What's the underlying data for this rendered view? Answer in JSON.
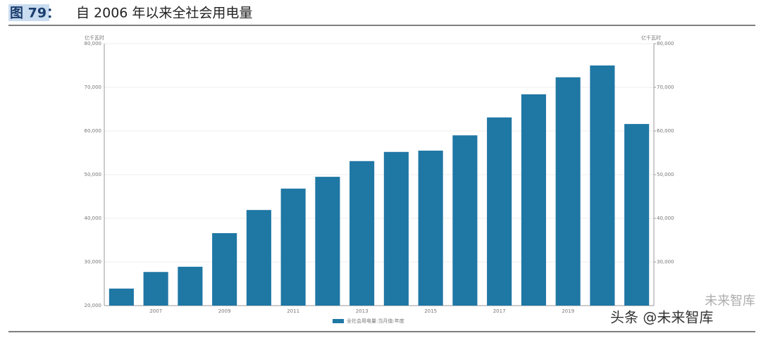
{
  "chart_data": {
    "type": "bar",
    "figure_label": "图 79：",
    "title": "自 2006 年以来全社会用电量",
    "y_unit": "亿千瓦时",
    "y2_unit": "亿千瓦时",
    "categories": [
      null,
      "2007",
      null,
      "2009",
      null,
      "2011",
      null,
      "2013",
      null,
      "2015",
      null,
      "2017",
      null,
      "2019",
      null,
      null
    ],
    "series": [
      {
        "name": "全社会用电量:当月值:年度",
        "color": "#1f77a4",
        "values": [
          23900,
          27700,
          28900,
          36600,
          41900,
          46800,
          49500,
          53100,
          55200,
          55500,
          59000,
          63100,
          68400,
          72300,
          75000,
          61600
        ]
      }
    ],
    "ylim": [
      20000,
      80000
    ],
    "yticks": [
      {
        "value": 20000,
        "label": "20,000"
      },
      {
        "value": 30000,
        "label": "30,000"
      },
      {
        "value": 40000,
        "label": "40,000"
      },
      {
        "value": 50000,
        "label": "50,000"
      },
      {
        "value": 60000,
        "label": "60,000"
      },
      {
        "value": 70000,
        "label": "70,000"
      },
      {
        "value": 80000,
        "label": "80,000"
      }
    ],
    "y2lim": [
      20000,
      80000
    ],
    "y2ticks": [
      {
        "value": 30000,
        "label": "30,000"
      },
      {
        "value": 40000,
        "label": "40,000"
      },
      {
        "value": 50000,
        "label": "50,000"
      },
      {
        "value": 60000,
        "label": "60,000"
      },
      {
        "value": 70000,
        "label": "70,000"
      },
      {
        "value": 80000,
        "label": "80,000"
      }
    ],
    "grid": true,
    "legend": "bottom",
    "watermarks": [
      "未来智库",
      "头条 @未来智库"
    ]
  }
}
